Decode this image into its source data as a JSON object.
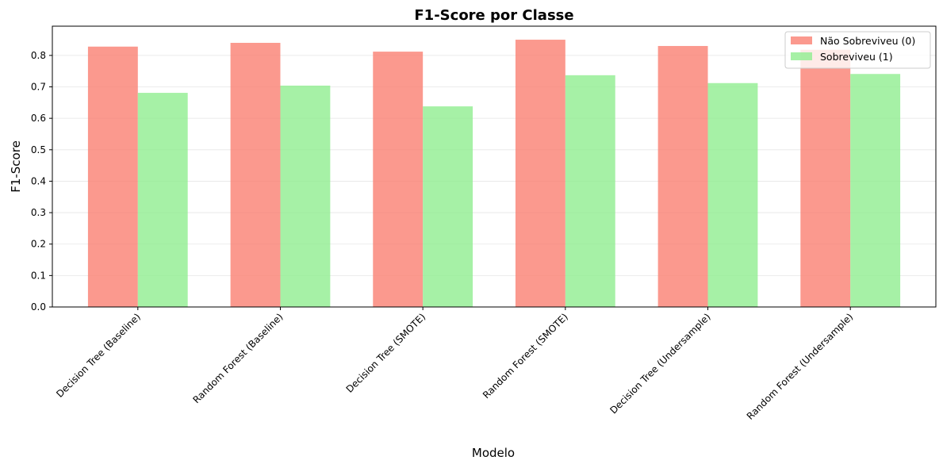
{
  "chart_data": {
    "type": "bar",
    "title": "F1-Score por Classe",
    "xlabel": "Modelo",
    "ylabel": "F1-Score",
    "categories": [
      "Decision Tree (Baseline)",
      "Random Forest (Baseline)",
      "Decision Tree (SMOTE)",
      "Random Forest (SMOTE)",
      "Decision Tree (Undersample)",
      "Random Forest (Undersample)"
    ],
    "series": [
      {
        "name": "Não Sobreviveu (0)",
        "color": "#fa8072",
        "values": [
          0.828,
          0.84,
          0.812,
          0.85,
          0.83,
          0.818
        ]
      },
      {
        "name": "Sobreviveu (1)",
        "color": "#90ee90",
        "values": [
          0.681,
          0.704,
          0.638,
          0.737,
          0.712,
          0.741
        ]
      }
    ],
    "ylim": [
      0,
      0.893
    ],
    "yticks": [
      0.0,
      0.1,
      0.2,
      0.3,
      0.4,
      0.5,
      0.6,
      0.7,
      0.8
    ],
    "ytick_labels": [
      "0.0",
      "0.1",
      "0.2",
      "0.3",
      "0.4",
      "0.5",
      "0.6",
      "0.7",
      "0.8"
    ],
    "grid": "y",
    "legend": "top-right"
  }
}
